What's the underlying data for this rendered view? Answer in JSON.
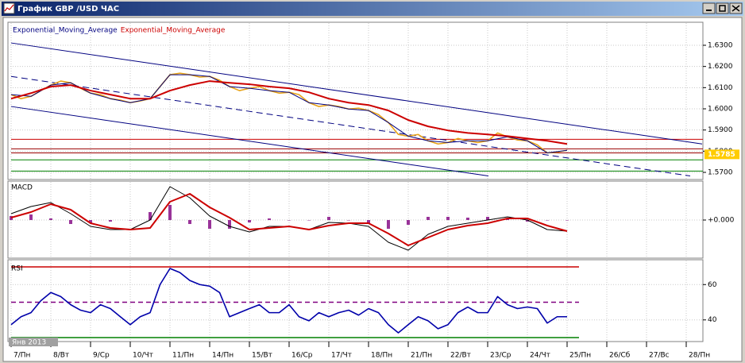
{
  "window": {
    "title": "График GBP /USD ЧАС"
  },
  "chart_data": [
    {
      "type": "line",
      "panel": "price",
      "ylim": [
        1.567,
        1.6405
      ],
      "yticks": [
        {
          "value": 1.63,
          "label": "1.6300"
        },
        {
          "value": 1.62,
          "label": "1.6200"
        },
        {
          "value": 1.61,
          "label": "1.6100"
        },
        {
          "value": 1.6,
          "label": "1.6000"
        },
        {
          "value": 1.59,
          "label": "1.5900"
        },
        {
          "value": 1.58,
          "label": "1.5800"
        },
        {
          "value": 1.57,
          "label": "1.5700"
        }
      ],
      "price_tag": {
        "value": 1.5785,
        "label": "1.5785",
        "color": "#ffcc00"
      },
      "levels": [
        {
          "value": 1.5856,
          "color": "#cc0000"
        },
        {
          "value": 1.5811,
          "color": "#990000"
        },
        {
          "value": 1.5792,
          "color": "#990000"
        },
        {
          "value": 1.5759,
          "color": "#008000"
        },
        {
          "value": 1.5706,
          "color": "#008000"
        }
      ],
      "lines": [
        {
          "x": [
            0,
            17.4
          ],
          "values": [
            1.6311,
            1.5834
          ],
          "color": "#000080",
          "dash": false
        },
        {
          "x": [
            0,
            12.02
          ],
          "values": [
            1.6011,
            1.5683
          ],
          "color": "#000080",
          "dash": false
        },
        {
          "x": [
            0,
            17.1
          ],
          "values": [
            1.6153,
            1.5683
          ],
          "color": "#000080",
          "dash": true
        }
      ],
      "series": [
        {
          "color": "#e8a317",
          "width": 1.6,
          "x": [
            0,
            0.25,
            0.5,
            0.75,
            1,
            1.25,
            1.5,
            1.75,
            2,
            2.25,
            2.5,
            2.75,
            3,
            3.25,
            3.5,
            3.75,
            4,
            4.25,
            4.5,
            4.75,
            5,
            5.25,
            5.5,
            5.75,
            6,
            6.25,
            6.5,
            6.75,
            7,
            7.25,
            7.5,
            7.75,
            8,
            8.25,
            8.5,
            8.75,
            9,
            9.25,
            9.5,
            9.75,
            10,
            10.25,
            10.5,
            10.75,
            11,
            11.25,
            11.5,
            11.75,
            12,
            12.25,
            12.5,
            12.75,
            13,
            13.25,
            13.5,
            13.75,
            14
          ],
          "values": [
            1.6067,
            1.6048,
            1.6059,
            1.6086,
            1.6112,
            1.6131,
            1.6123,
            1.6097,
            1.6074,
            1.6067,
            1.6048,
            1.6041,
            1.6029,
            1.6037,
            1.6048,
            1.6105,
            1.6161,
            1.6168,
            1.6161,
            1.615,
            1.6153,
            1.6135,
            1.6105,
            1.6086,
            1.6097,
            1.6105,
            1.6086,
            1.6074,
            1.6078,
            1.6067,
            1.6029,
            1.6011,
            1.6018,
            1.6011,
            1.5999,
            1.6003,
            1.5992,
            1.5973,
            1.5935,
            1.5879,
            1.5871,
            1.5879,
            1.5849,
            1.5834,
            1.5841,
            1.586,
            1.5849,
            1.5841,
            1.5849,
            1.5886,
            1.5868,
            1.5853,
            1.5849,
            1.583,
            1.5792,
            1.5796,
            1.5804
          ]
        },
        {
          "name": "Exponential_Moving_Average",
          "color": "#000080",
          "width": 1,
          "x": [
            0,
            0.5,
            1,
            1.5,
            2,
            2.5,
            3,
            3.5,
            4,
            4.5,
            5,
            5.5,
            6,
            6.5,
            7,
            7.5,
            8,
            8.5,
            9,
            9.5,
            10,
            10.5,
            11,
            11.5,
            12,
            12.5,
            13,
            13.5,
            14
          ],
          "values": [
            1.6067,
            1.6059,
            1.6112,
            1.6123,
            1.6074,
            1.6048,
            1.6029,
            1.6048,
            1.6161,
            1.6161,
            1.6153,
            1.6105,
            1.6097,
            1.6086,
            1.6078,
            1.6029,
            1.6018,
            1.5999,
            1.5992,
            1.5935,
            1.5871,
            1.5849,
            1.5841,
            1.5849,
            1.5849,
            1.5868,
            1.5849,
            1.5792,
            1.5804
          ]
        },
        {
          "name": "Exponential_Moving_Average",
          "color": "#cc0000",
          "width": 2,
          "x": [
            0,
            0.5,
            1,
            1.5,
            2,
            2.5,
            3,
            3.5,
            4,
            4.5,
            5,
            5.5,
            6,
            6.5,
            7,
            7.5,
            8,
            8.5,
            9,
            9.5,
            10,
            10.5,
            11,
            11.5,
            12,
            12.5,
            13,
            13.5,
            14
          ],
          "values": [
            1.6048,
            1.6074,
            1.6105,
            1.6112,
            1.6086,
            1.6067,
            1.6048,
            1.6048,
            1.6086,
            1.6112,
            1.6131,
            1.6123,
            1.6116,
            1.6105,
            1.6097,
            1.6078,
            1.6048,
            1.6029,
            1.6018,
            1.5992,
            1.5947,
            1.5917,
            1.5898,
            1.5886,
            1.5879,
            1.5871,
            1.586,
            1.5849,
            1.5834
          ]
        }
      ]
    },
    {
      "type": "line",
      "panel": "macd",
      "label": "MACD",
      "ylim": [
        -0.0047,
        0.0048
      ],
      "yticks": [
        {
          "value": 0,
          "label": "+0.000"
        }
      ],
      "series": [
        {
          "kind": "bar",
          "color": "#993399",
          "x": [
            0,
            0.5,
            1,
            1.5,
            2,
            2.5,
            3,
            3.5,
            4,
            4.5,
            5,
            5.5,
            6,
            6.5,
            7,
            7.5,
            8,
            8.5,
            9,
            9.5,
            10,
            10.5,
            11,
            11.5,
            12,
            12.5,
            13,
            13.5,
            14
          ],
          "values": [
            0.0005,
            0.0007,
            0.0002,
            -0.0005,
            -0.0004,
            -0.0002,
            0,
            0.001,
            0.0019,
            -0.0005,
            -0.0011,
            -0.0011,
            -0.0003,
            0.0002,
            0,
            0,
            0.0004,
            0,
            -0.0004,
            -0.0011,
            -0.0006,
            0.0004,
            0.0004,
            0.0003,
            0.0004,
            0.0002,
            -0.0002,
            0,
            0
          ]
        },
        {
          "color": "#000000",
          "width": 1,
          "x": [
            0,
            0.5,
            1,
            1.5,
            2,
            2.5,
            3,
            3.5,
            4,
            4.5,
            5,
            5.5,
            6,
            6.5,
            7,
            7.5,
            8,
            8.5,
            9,
            9.5,
            10,
            10.5,
            11,
            11.5,
            12,
            12.5,
            13,
            13.5,
            14
          ],
          "values": [
            0.0008,
            0.0017,
            0.0022,
            0.0008,
            -0.0008,
            -0.0012,
            -0.0012,
            0,
            0.0042,
            0.0028,
            0.0005,
            -0.0008,
            -0.0015,
            -0.0008,
            -0.0008,
            -0.0012,
            -0.0003,
            -0.0004,
            -0.0008,
            -0.0028,
            -0.0038,
            -0.0018,
            -0.0008,
            -0.0004,
            0,
            0.0004,
            0,
            -0.0012,
            -0.0014
          ]
        },
        {
          "color": "#cc0000",
          "width": 2,
          "x": [
            0,
            0.5,
            1,
            1.5,
            2,
            2.5,
            3,
            3.5,
            4,
            4.5,
            5,
            5.5,
            6,
            6.5,
            7,
            7.5,
            8,
            8.5,
            9,
            9.5,
            10,
            10.5,
            11,
            11.5,
            12,
            12.5,
            13,
            13.5,
            14
          ],
          "values": [
            0.0003,
            0.001,
            0.002,
            0.0013,
            -0.0004,
            -0.001,
            -0.0012,
            -0.001,
            0.0023,
            0.0033,
            0.0016,
            0.0003,
            -0.0012,
            -0.001,
            -0.0008,
            -0.0012,
            -0.0007,
            -0.0004,
            -0.0004,
            -0.0017,
            -0.0032,
            -0.0022,
            -0.0012,
            -0.0007,
            -0.0004,
            0.0002,
            0.0002,
            -0.0007,
            -0.0014
          ]
        }
      ]
    },
    {
      "type": "line",
      "panel": "rsi",
      "label": "RSI",
      "ylim": [
        28.2,
        73.6
      ],
      "yticks": [
        60,
        40
      ],
      "levels": [
        {
          "value": 70,
          "color": "#cc0000"
        },
        {
          "value": 50,
          "color": "#800080",
          "dash": true
        },
        {
          "value": 30,
          "color": "#008000"
        }
      ],
      "annotation": "Янв 2013",
      "xlim": [
        0,
        17.42
      ],
      "xticks": [
        {
          "value": 0,
          "label": "7/Пн"
        },
        {
          "value": 1,
          "label": "8/Вт"
        },
        {
          "value": 2,
          "label": "9/Ср"
        },
        {
          "value": 3,
          "label": "10/Чт"
        },
        {
          "value": 4,
          "label": "11/Пн"
        },
        {
          "value": 5,
          "label": "14/Пн"
        },
        {
          "value": 6,
          "label": "15/Вт"
        },
        {
          "value": 7,
          "label": "16/Ср"
        },
        {
          "value": 8,
          "label": "17/Чт"
        },
        {
          "value": 9,
          "label": "18/Пн"
        },
        {
          "value": 10,
          "label": "21/Пн"
        },
        {
          "value": 11,
          "label": "22/Вт"
        },
        {
          "value": 12,
          "label": "23/Ср"
        },
        {
          "value": 13,
          "label": "24/Чт"
        },
        {
          "value": 14,
          "label": "25/Пн"
        },
        {
          "value": 15,
          "label": "26/Сб"
        },
        {
          "value": 16,
          "label": "27/Вс"
        },
        {
          "value": 17,
          "label": "28/Пн"
        }
      ],
      "series": [
        {
          "color": "#0000aa",
          "width": 1.6,
          "x": [
            0,
            0.25,
            0.5,
            0.75,
            1,
            1.25,
            1.5,
            1.75,
            2,
            2.25,
            2.5,
            2.75,
            3,
            3.25,
            3.5,
            3.75,
            4,
            4.25,
            4.5,
            4.75,
            5,
            5.25,
            5.5,
            5.75,
            6,
            6.25,
            6.5,
            6.75,
            7,
            7.25,
            7.5,
            7.75,
            8,
            8.25,
            8.5,
            8.75,
            9,
            9.25,
            9.5,
            9.75,
            10,
            10.25,
            10.5,
            10.75,
            11,
            11.25,
            11.5,
            11.75,
            12,
            12.25,
            12.5,
            12.75,
            13,
            13.25,
            13.5,
            13.75,
            14
          ],
          "values": [
            37.3,
            41.8,
            44.1,
            50.9,
            55.5,
            53.2,
            48.6,
            45.5,
            44.1,
            48.6,
            46.4,
            41.8,
            37.3,
            41.8,
            44.1,
            60,
            69.1,
            66.8,
            62.3,
            60,
            59.1,
            55.5,
            41.8,
            44.1,
            46.4,
            48.6,
            44.1,
            44.1,
            48.6,
            41.8,
            39.5,
            44.1,
            41.8,
            44.1,
            45.5,
            42.7,
            46.4,
            44.1,
            37.3,
            32.7,
            37.3,
            41.8,
            39.5,
            35,
            37.3,
            44.1,
            47.3,
            44.1,
            44.1,
            53.2,
            48.6,
            46.4,
            47.3,
            46.4,
            38.2,
            41.8,
            41.8
          ]
        }
      ]
    }
  ]
}
